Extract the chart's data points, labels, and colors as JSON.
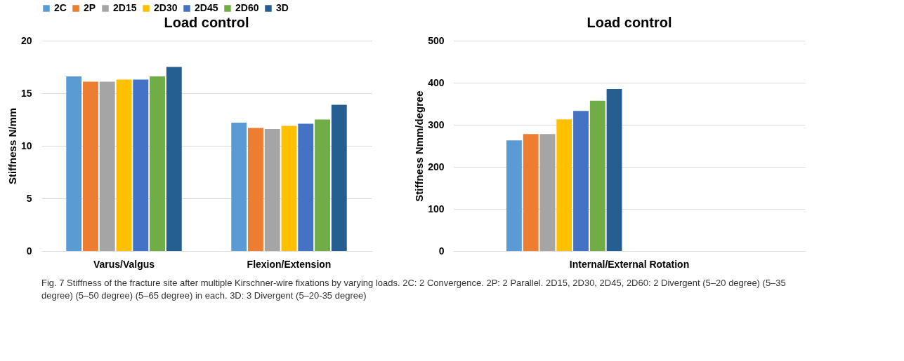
{
  "chart_data": [
    {
      "type": "bar",
      "title": "Load control",
      "ylabel": "Stiffness N/mm",
      "categories": [
        "Varus/Valgus",
        "Flexion/Extension"
      ],
      "series": [
        {
          "name": "2C",
          "color": "#5b9bd5",
          "values": [
            16.6,
            12.2
          ]
        },
        {
          "name": "2P",
          "color": "#ed7d31",
          "values": [
            16.1,
            11.7
          ]
        },
        {
          "name": "2D15",
          "color": "#a5a5a5",
          "values": [
            16.1,
            11.6
          ]
        },
        {
          "name": "2D30",
          "color": "#ffc000",
          "values": [
            16.3,
            11.9
          ]
        },
        {
          "name": "2D45",
          "color": "#4472c4",
          "values": [
            16.3,
            12.1
          ]
        },
        {
          "name": "2D60",
          "color": "#70ad47",
          "values": [
            16.6,
            12.5
          ]
        },
        {
          "name": "3D",
          "color": "#255e91",
          "values": [
            17.5,
            13.9
          ]
        }
      ],
      "ylim": [
        0,
        20
      ],
      "yticks": [
        0,
        5,
        10,
        15,
        20
      ],
      "grid": "y",
      "legend": "top",
      "annotations": [
        "Fig. 7  Stiffness of the fracture site after multiple Kirschner-wire fixations by varying loads. 2C: 2 Convergence. 2P: 2 Parallel. 2D15, 2D30, 2D45, 2D60: 2 Divergent (5–20 degree) (5–35 degree) (5–50 degree) (5–65 degree) in each. 3D: 3 Divergent (5–20-35 degree)"
      ]
    },
    {
      "type": "bar",
      "title": "Load control",
      "ylabel": "Stiffness Nmm/degree",
      "categories": [
        "Internal/External Rotation"
      ],
      "series": [
        {
          "name": "2C",
          "color": "#5b9bd5",
          "values": [
            263
          ]
        },
        {
          "name": "2P",
          "color": "#ed7d31",
          "values": [
            278
          ]
        },
        {
          "name": "2D15",
          "color": "#a5a5a5",
          "values": [
            278
          ]
        },
        {
          "name": "2D30",
          "color": "#ffc000",
          "values": [
            313
          ]
        },
        {
          "name": "2D45",
          "color": "#4472c4",
          "values": [
            333
          ]
        },
        {
          "name": "2D60",
          "color": "#70ad47",
          "values": [
            357
          ]
        },
        {
          "name": "3D",
          "color": "#255e91",
          "values": [
            385
          ]
        }
      ],
      "ylim": [
        0,
        500
      ],
      "yticks": [
        0,
        100,
        200,
        300,
        400,
        500
      ],
      "grid": "y",
      "legend": "top"
    }
  ]
}
